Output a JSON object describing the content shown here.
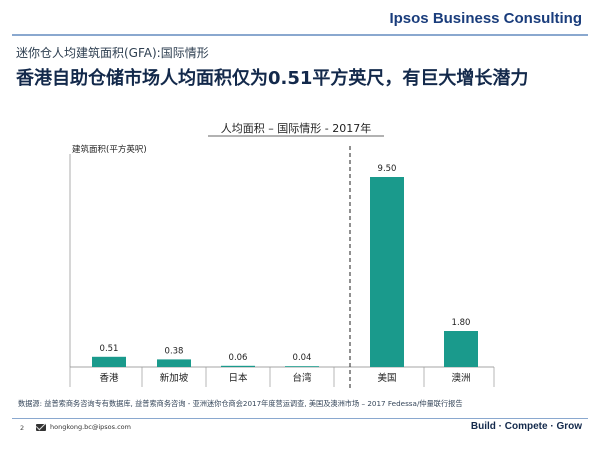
{
  "header": {
    "brand": "Ipsos Business Consulting",
    "subtitle": "迷你仓人均建筑面积(GFA):国际情形",
    "title": "香港自助仓储市场人均面积仅为0.51平方英尺，有巨大增长潜力"
  },
  "chart_data": {
    "type": "bar",
    "title": "人均面积 – 国际情形 - 2017年",
    "ylabel": "建筑面积(平方英呎)",
    "xlabel": "",
    "categories": [
      "香港",
      "新加坡",
      "日本",
      "台湾",
      "美国",
      "澳洲"
    ],
    "values": [
      0.51,
      0.38,
      0.06,
      0.04,
      9.5,
      1.8
    ],
    "value_labels": [
      "0.51",
      "0.38",
      "0.06",
      "0.04",
      "9.50",
      "1.80"
    ],
    "ylim": [
      0,
      10
    ],
    "grid": false,
    "legend": "none",
    "divider_after_index": 3,
    "bar_color": "#1a9a8c"
  },
  "footer": {
    "source": "数据源: 益普索商务咨询专有数据库, 益普索商务咨询 - 亚洲迷你仓商会2017年度营运调查, 美国及澳洲市场 – 2017 Fedessa/仲量联行报告",
    "page": "2",
    "email": "hongkong.bc@ipsos.com",
    "tagline": "Build · Compete · Grow"
  }
}
